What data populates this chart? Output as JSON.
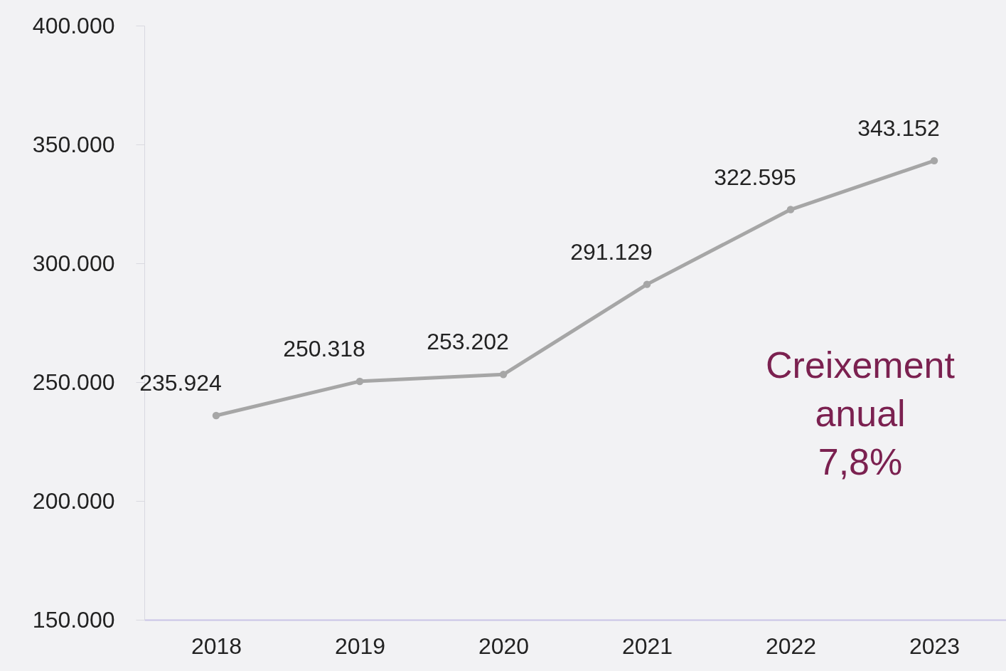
{
  "chart_data": {
    "type": "line",
    "categories": [
      "2018",
      "2019",
      "2020",
      "2021",
      "2022",
      "2023"
    ],
    "series": [
      {
        "color": "#a6a6a6",
        "values": [
          235924,
          250318,
          253202,
          291129,
          322595,
          343152
        ],
        "value_labels": [
          "235.924",
          "250.318",
          "253.202",
          "291.129",
          "322.595",
          "343.152"
        ]
      }
    ],
    "ylim": [
      150000,
      400000
    ],
    "yticks": [
      {
        "value": 150000,
        "label": "150.000"
      },
      {
        "value": 200000,
        "label": "200.000"
      },
      {
        "value": 250000,
        "label": "250.000"
      },
      {
        "value": 300000,
        "label": "300.000"
      },
      {
        "value": 350000,
        "label": "350.000"
      },
      {
        "value": 400000,
        "label": "400.000"
      }
    ],
    "annotations": [
      "Creixement anual 7,8%"
    ],
    "grid": false,
    "marker": "circle",
    "line_style": "solid"
  }
}
